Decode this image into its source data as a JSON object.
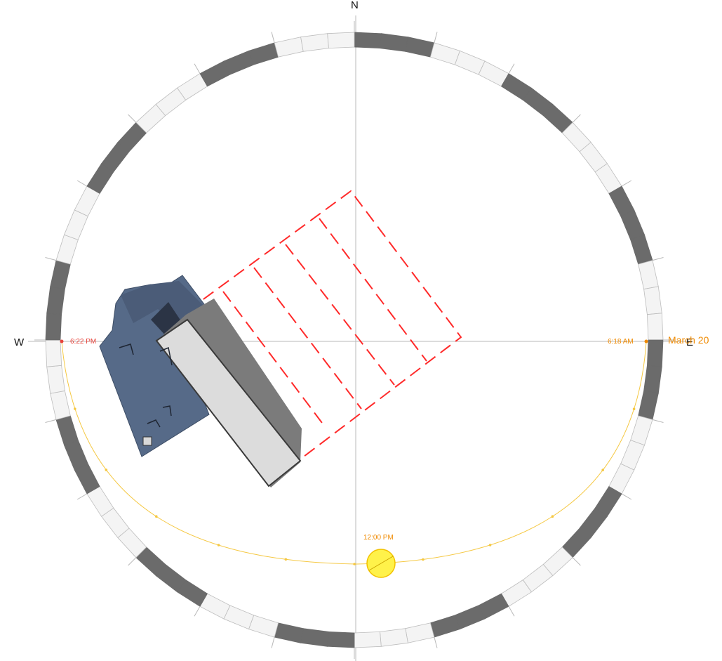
{
  "compass": {
    "north": "N",
    "south": "",
    "east": "E",
    "west": "W"
  },
  "sun": {
    "sunrise_label": "6:18 AM",
    "sunset_label": "6:22 PM",
    "noon_label": "12:00 PM",
    "date_label": "March 20",
    "hour_labels": [
      "6:22 PM",
      "6:18 AM",
      "12:00 PM"
    ]
  },
  "colors": {
    "ring_dark": "#6b6b6b",
    "ring_light": "#f4f4f4",
    "ring_stroke": "#bdbdbd",
    "sun_path": "#f5c842",
    "sun_disc": "#fff24a",
    "sun_disc_stroke": "#f2c200",
    "sunrise_text": "#f08a00",
    "sunset_text": "#e8433b",
    "shadow_dash": "#ff2a2a",
    "building_top": "#dcdcdc",
    "building_side": "#7b7b7b",
    "roof_blue": "#566a88",
    "axis": "#b8b8b8"
  },
  "icons": {
    "sun": "sun-icon",
    "building": "building-icon"
  }
}
